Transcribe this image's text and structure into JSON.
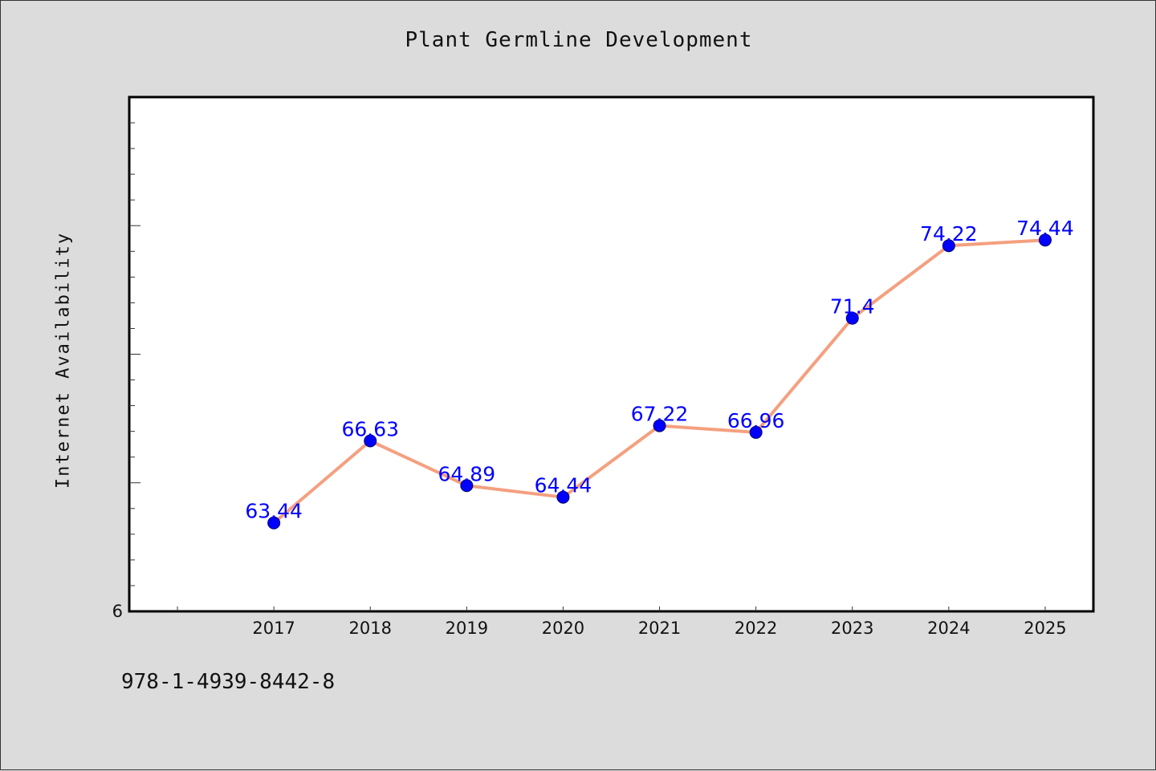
{
  "footer_note": "978-1-4939-8442-8",
  "colors": {
    "line": "#f4a07f",
    "marker": "#0000ff",
    "label": "#0000ff",
    "plot_bg": "#ffffff",
    "figure_bg": "#dcdcdc"
  },
  "chart_data": {
    "type": "line",
    "title": "Plant Germline Development",
    "xlabel": "",
    "ylabel": "Internet Availability",
    "categories": [
      "2017",
      "2018",
      "2019",
      "2020",
      "2021",
      "2022",
      "2023",
      "2024",
      "2025"
    ],
    "series": [
      {
        "values": [
          63.44,
          66.63,
          64.89,
          64.44,
          67.22,
          66.96,
          71.4,
          74.22,
          74.44
        ]
      }
    ],
    "data_labels": [
      "63.44",
      "66.63",
      "64.89",
      "64.44",
      "67.22",
      "66.96",
      "71.4",
      "74.22",
      "74.44"
    ],
    "ylim": [
      60,
      80
    ],
    "y_tick_labels": [
      "6"
    ],
    "xlim": [
      2015.5,
      2025.5
    ],
    "grid": false,
    "legend": "none"
  }
}
